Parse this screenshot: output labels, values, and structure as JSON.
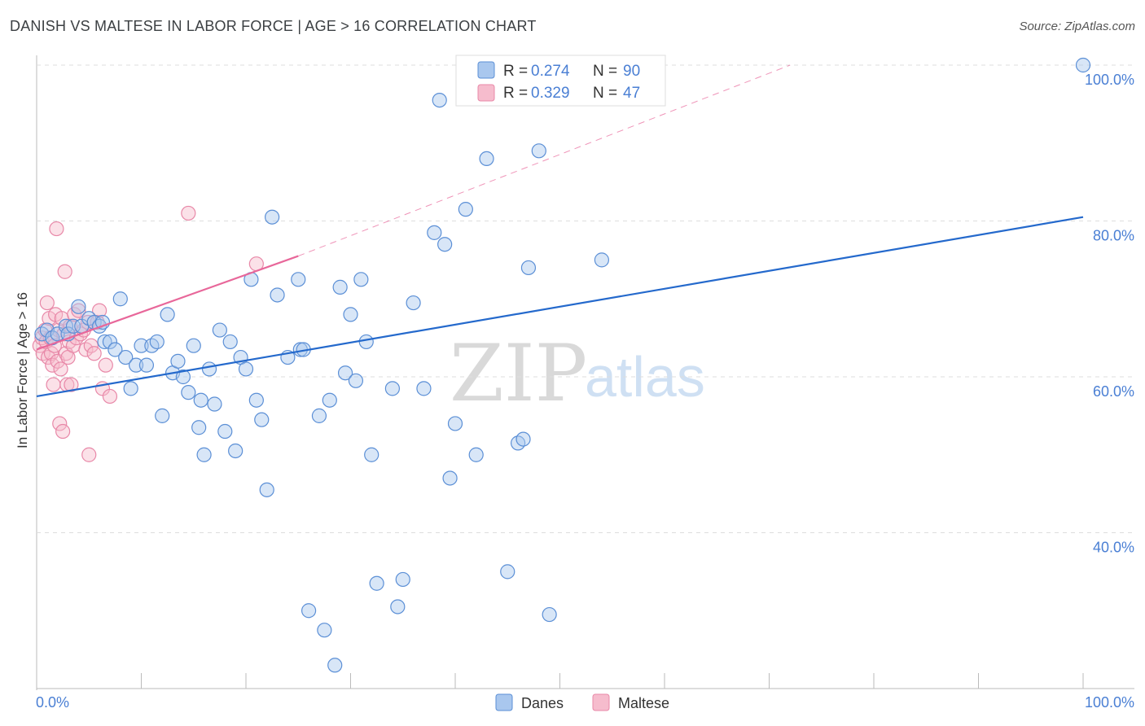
{
  "title": "DANISH VS MALTESE IN LABOR FORCE | AGE > 16 CORRELATION CHART",
  "source": "Source: ZipAtlas.com",
  "colors": {
    "danes_fill": "#a9c7ee",
    "danes_stroke": "#5b8fd6",
    "danes_line": "#2469cc",
    "maltese_fill": "#f6bccd",
    "maltese_stroke": "#e888a8",
    "maltese_line": "#e8679a",
    "accent_text": "#4a7fd4"
  },
  "legend": {
    "danes": {
      "r_label": "R =",
      "r_value": "0.274",
      "n_label": "N =",
      "n_value": "90"
    },
    "maltese": {
      "r_label": "R =",
      "r_value": "0.329",
      "n_label": "N =",
      "n_value": "47"
    }
  },
  "bottom_legend": {
    "danes": "Danes",
    "maltese": "Maltese"
  },
  "watermark": {
    "zip": "ZIP",
    "atlas": "atlas"
  },
  "chart_data": {
    "type": "scatter",
    "title": "DANISH VS MALTESE IN LABOR FORCE | AGE > 16 CORRELATION CHART",
    "xlabel": "",
    "ylabel": "In Labor Force | Age > 16",
    "xlim": [
      0,
      100
    ],
    "ylim": [
      20,
      102
    ],
    "x_tick_labels": {
      "left": "0.0%",
      "right": "100.0%"
    },
    "y_ticks": [
      {
        "value": 100,
        "label": "100.0%"
      },
      {
        "value": 80,
        "label": "80.0%"
      },
      {
        "value": 60,
        "label": "60.0%"
      },
      {
        "value": 40,
        "label": "40.0%"
      }
    ],
    "grid": true,
    "legend_position": "top-center",
    "series": [
      {
        "name": "Danes",
        "r": 0.274,
        "n": 90,
        "trend": {
          "x1": 0,
          "y1": 57.5,
          "x2": 100,
          "y2": 80.5
        },
        "points": [
          [
            0.5,
            65.5
          ],
          [
            1,
            66
          ],
          [
            1.5,
            65
          ],
          [
            2,
            65.5
          ],
          [
            2.8,
            66.5
          ],
          [
            3,
            65.5
          ],
          [
            3.5,
            66.5
          ],
          [
            4,
            69
          ],
          [
            4.3,
            66.5
          ],
          [
            5,
            67.5
          ],
          [
            5.5,
            67
          ],
          [
            6,
            66.5
          ],
          [
            6.3,
            67
          ],
          [
            6.5,
            64.5
          ],
          [
            7,
            64.5
          ],
          [
            7.5,
            63.5
          ],
          [
            8,
            70
          ],
          [
            8.5,
            62.5
          ],
          [
            9,
            58.5
          ],
          [
            9.5,
            61.5
          ],
          [
            10,
            64
          ],
          [
            10.5,
            61.5
          ],
          [
            11,
            64
          ],
          [
            11.5,
            64.5
          ],
          [
            12,
            55
          ],
          [
            12.5,
            68
          ],
          [
            13,
            60.5
          ],
          [
            13.5,
            62
          ],
          [
            14,
            60
          ],
          [
            14.5,
            58
          ],
          [
            15,
            64
          ],
          [
            15.5,
            53.5
          ],
          [
            15.7,
            57
          ],
          [
            16,
            50
          ],
          [
            16.5,
            61
          ],
          [
            17,
            56.5
          ],
          [
            17.5,
            66
          ],
          [
            18,
            53
          ],
          [
            18.5,
            64.5
          ],
          [
            19,
            50.5
          ],
          [
            19.5,
            62.5
          ],
          [
            20,
            61
          ],
          [
            20.5,
            72.5
          ],
          [
            21,
            57
          ],
          [
            21.5,
            54.5
          ],
          [
            22,
            45.5
          ],
          [
            22.5,
            80.5
          ],
          [
            23,
            70.5
          ],
          [
            24,
            62.5
          ],
          [
            25,
            72.5
          ],
          [
            25.2,
            63.5
          ],
          [
            25.5,
            63.5
          ],
          [
            26,
            30
          ],
          [
            27,
            55
          ],
          [
            27.5,
            27.5
          ],
          [
            28,
            57
          ],
          [
            28.5,
            23
          ],
          [
            29,
            71.5
          ],
          [
            29.5,
            60.5
          ],
          [
            30,
            68
          ],
          [
            30.5,
            59.5
          ],
          [
            31,
            72.5
          ],
          [
            31.5,
            64.5
          ],
          [
            32,
            50
          ],
          [
            32.5,
            33.5
          ],
          [
            34,
            58.5
          ],
          [
            34.5,
            30.5
          ],
          [
            35,
            34
          ],
          [
            36,
            69.5
          ],
          [
            37,
            58.5
          ],
          [
            38,
            78.5
          ],
          [
            38.5,
            95.5
          ],
          [
            39,
            77
          ],
          [
            39.5,
            47
          ],
          [
            40,
            54
          ],
          [
            41,
            81.5
          ],
          [
            42,
            50
          ],
          [
            43,
            88
          ],
          [
            45,
            35
          ],
          [
            46,
            51.5
          ],
          [
            46.5,
            52
          ],
          [
            47,
            74
          ],
          [
            48,
            89
          ],
          [
            49,
            29.5
          ],
          [
            49.5,
            100
          ],
          [
            50,
            98
          ],
          [
            51,
            100
          ],
          [
            52,
            100
          ],
          [
            54,
            75
          ],
          [
            100,
            100
          ]
        ]
      },
      {
        "name": "Maltese",
        "r": 0.329,
        "n": 47,
        "trend": {
          "x1": 0,
          "y1": 63.5,
          "x2": 25,
          "y2": 75.5
        },
        "trend_extension": {
          "x1": 25,
          "y1": 75.5,
          "x2": 72,
          "y2": 100
        },
        "points": [
          [
            0.3,
            64
          ],
          [
            0.5,
            65
          ],
          [
            0.6,
            63
          ],
          [
            0.8,
            66
          ],
          [
            0.9,
            64.5
          ],
          [
            1,
            69.5
          ],
          [
            1.1,
            62.5
          ],
          [
            1.2,
            67.5
          ],
          [
            1.3,
            65
          ],
          [
            1.4,
            63
          ],
          [
            1.5,
            61.5
          ],
          [
            1.6,
            59
          ],
          [
            1.7,
            64
          ],
          [
            1.8,
            68
          ],
          [
            1.9,
            79
          ],
          [
            2,
            62
          ],
          [
            2.1,
            66
          ],
          [
            2.2,
            54
          ],
          [
            2.3,
            61
          ],
          [
            2.4,
            67.5
          ],
          [
            2.5,
            53
          ],
          [
            2.6,
            65.5
          ],
          [
            2.7,
            73.5
          ],
          [
            2.8,
            63
          ],
          [
            2.9,
            59
          ],
          [
            3,
            62.5
          ],
          [
            3.1,
            64.5
          ],
          [
            3.2,
            66.5
          ],
          [
            3.3,
            59
          ],
          [
            3.5,
            64
          ],
          [
            3.6,
            68
          ],
          [
            3.8,
            65
          ],
          [
            4,
            68.5
          ],
          [
            4.2,
            65.5
          ],
          [
            4.5,
            66
          ],
          [
            4.7,
            63.5
          ],
          [
            4.9,
            67
          ],
          [
            5,
            50
          ],
          [
            5.2,
            64
          ],
          [
            5.5,
            63
          ],
          [
            5.8,
            67
          ],
          [
            6,
            68.5
          ],
          [
            6.3,
            58.5
          ],
          [
            6.6,
            61.5
          ],
          [
            7,
            57.5
          ],
          [
            14.5,
            81
          ],
          [
            21,
            74.5
          ]
        ]
      }
    ]
  }
}
